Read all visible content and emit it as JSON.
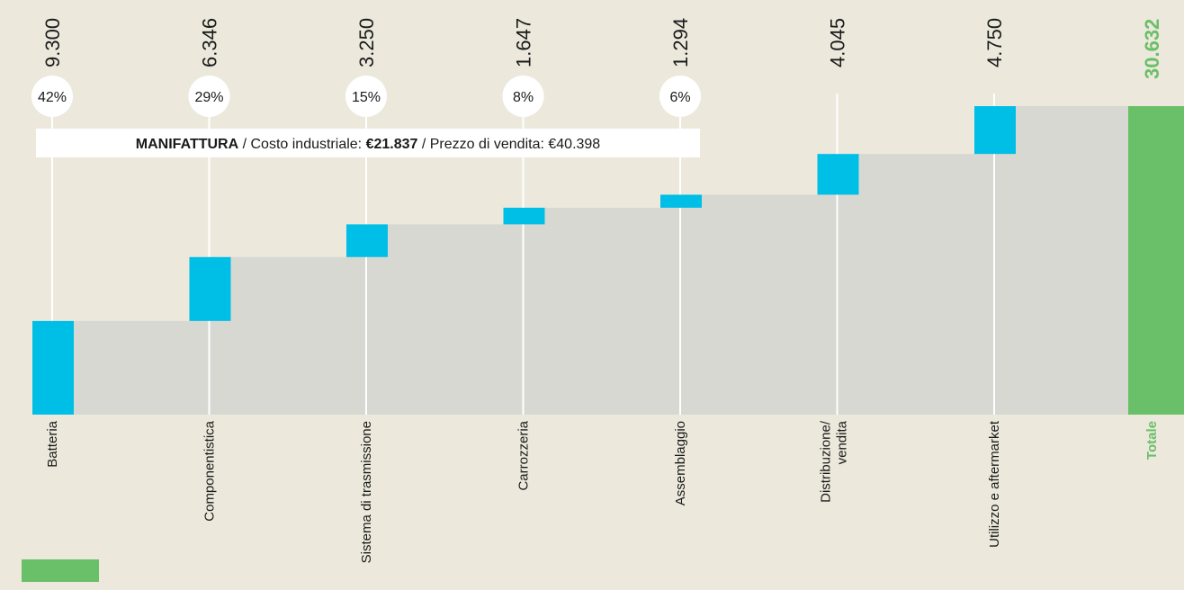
{
  "chart_data": {
    "type": "waterfall",
    "categories": [
      "Batteria",
      "Componentistica",
      "Sistema di trasmissione",
      "Carrozzeria",
      "Assemblaggio",
      "Distribuzione/ vendita",
      "Utilizzo e aftermarket"
    ],
    "values": [
      9300,
      6346,
      3250,
      1647,
      1294,
      4045,
      4750
    ],
    "value_labels": [
      "9.300",
      "6.346",
      "3.250",
      "1.647",
      "1.294",
      "4.045",
      "4.750"
    ],
    "color": "#00bfe6",
    "total": {
      "label": "Totale",
      "value": 30632,
      "value_label": "30.632",
      "color": "#6abf69"
    },
    "shares": {
      "values": [
        42,
        29,
        15,
        8,
        6
      ],
      "value_labels": [
        "42%",
        "29%",
        "15%",
        "8%",
        "6%"
      ]
    },
    "annotation": [
      {
        "text": "MANIFATTURA",
        "bold": true
      },
      {
        "text": " / Costo industriale: ",
        "bold": false
      },
      {
        "text": "€21.837",
        "bold": true
      },
      {
        "text": " / Prezzo di vendita: €40.398",
        "bold": false
      }
    ]
  }
}
